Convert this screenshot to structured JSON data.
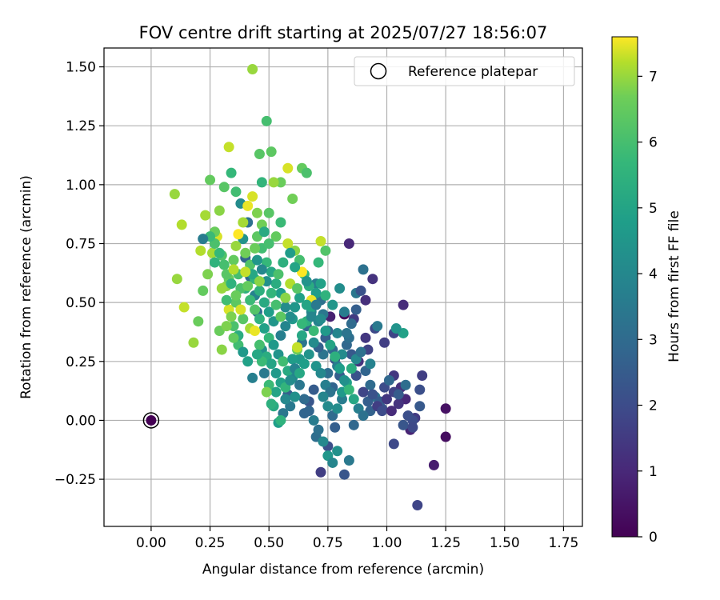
{
  "chart_data": {
    "type": "scatter",
    "title": "FOV centre drift starting at 2025/07/27 18:56:07",
    "xlabel": "Angular distance from reference (arcmin)",
    "ylabel": "Rotation from reference (arcmin)",
    "xlim": [
      -0.2,
      1.83
    ],
    "ylim": [
      -0.45,
      1.58
    ],
    "xticks": [
      "0.00",
      "0.25",
      "0.50",
      "0.75",
      "1.00",
      "1.25",
      "1.50",
      "1.75"
    ],
    "xtick_values": [
      0,
      0.25,
      0.5,
      0.75,
      1.0,
      1.25,
      1.5,
      1.75
    ],
    "yticks": [
      "−0.25",
      "0.00",
      "0.25",
      "0.50",
      "0.75",
      "1.00",
      "1.25",
      "1.50"
    ],
    "ytick_values": [
      -0.25,
      0,
      0.25,
      0.5,
      0.75,
      1.0,
      1.25,
      1.5
    ],
    "grid": true,
    "legend": {
      "position": "top-right",
      "label": "Reference platepar"
    },
    "reference_point": {
      "x": 0.0,
      "y": 0.0,
      "hours": 0
    },
    "colorbar": {
      "label": "Hours from first FF file",
      "range": [
        0,
        7.6
      ],
      "ticks": [
        "0",
        "1",
        "2",
        "3",
        "4",
        "5",
        "6",
        "7"
      ],
      "tick_values": [
        0,
        1,
        2,
        3,
        4,
        5,
        6,
        7
      ],
      "colormap": "viridis"
    },
    "points": [
      [
        0.82,
        0.45,
        0.2
      ],
      [
        0.76,
        0.44,
        0.8
      ],
      [
        0.84,
        0.75,
        1.0
      ],
      [
        0.91,
        0.51,
        1.2
      ],
      [
        0.94,
        0.6,
        1.3
      ],
      [
        1.07,
        0.49,
        1.1
      ],
      [
        0.86,
        0.43,
        1.5
      ],
      [
        0.88,
        0.25,
        1.3
      ],
      [
        0.92,
        0.3,
        1.7
      ],
      [
        0.95,
        0.39,
        1.9
      ],
      [
        0.99,
        0.33,
        1.6
      ],
      [
        1.03,
        0.37,
        1.8
      ],
      [
        1.03,
        0.19,
        1.4
      ],
      [
        1.06,
        0.14,
        1.2
      ],
      [
        1.08,
        0.09,
        1.0
      ],
      [
        1.1,
        -0.04,
        0.9
      ],
      [
        1.12,
        0.01,
        1.5
      ],
      [
        1.14,
        0.13,
        2.1
      ],
      [
        1.15,
        0.19,
        1.6
      ],
      [
        1.14,
        0.06,
        2.4
      ],
      [
        1.2,
        -0.19,
        0.7
      ],
      [
        1.25,
        0.05,
        0.4
      ],
      [
        1.25,
        -0.07,
        0.3
      ],
      [
        1.13,
        -0.36,
        1.8
      ],
      [
        1.03,
        -0.1,
        1.9
      ],
      [
        1.07,
        -0.02,
        2.3
      ],
      [
        1.11,
        0.0,
        2.0
      ],
      [
        0.98,
        0.05,
        2.2
      ],
      [
        0.95,
        0.1,
        2.5
      ],
      [
        0.93,
        0.04,
        2.7
      ],
      [
        0.9,
        0.12,
        1.8
      ],
      [
        0.87,
        0.19,
        2.2
      ],
      [
        0.85,
        0.28,
        2.4
      ],
      [
        0.83,
        0.32,
        2.9
      ],
      [
        0.8,
        0.19,
        2.6
      ],
      [
        0.78,
        0.26,
        2.2
      ],
      [
        0.77,
        0.14,
        2.8
      ],
      [
        0.75,
        0.2,
        3.1
      ],
      [
        0.73,
        0.28,
        3.3
      ],
      [
        0.71,
        0.31,
        2.7
      ],
      [
        0.69,
        0.13,
        2.5
      ],
      [
        0.67,
        0.08,
        2.3
      ],
      [
        0.65,
        0.03,
        2.8
      ],
      [
        0.7,
        -0.07,
        3.1
      ],
      [
        0.72,
        -0.22,
        1.6
      ],
      [
        0.75,
        -0.11,
        2.1
      ],
      [
        0.78,
        -0.03,
        2.6
      ],
      [
        0.82,
        -0.23,
        2.3
      ],
      [
        0.84,
        -0.17,
        3.5
      ],
      [
        0.86,
        -0.02,
        2.9
      ],
      [
        0.79,
        -0.13,
        4.3
      ],
      [
        0.81,
        0.09,
        3.6
      ],
      [
        0.79,
        0.37,
        3.9
      ],
      [
        0.82,
        0.46,
        3.6
      ],
      [
        0.87,
        0.54,
        3.4
      ],
      [
        0.9,
        0.64,
        3.2
      ],
      [
        0.84,
        0.35,
        3.1
      ],
      [
        0.8,
        0.56,
        4.2
      ],
      [
        0.77,
        0.49,
        4.5
      ],
      [
        0.74,
        0.35,
        2.6
      ],
      [
        0.72,
        0.51,
        3.2
      ],
      [
        0.7,
        0.58,
        3.7
      ],
      [
        0.68,
        0.46,
        4.0
      ],
      [
        0.66,
        0.4,
        2.9
      ],
      [
        0.64,
        0.33,
        3.3
      ],
      [
        0.63,
        0.26,
        4.6
      ],
      [
        0.6,
        0.18,
        3.9
      ],
      [
        0.58,
        0.11,
        2.6
      ],
      [
        0.56,
        0.03,
        3.4
      ],
      [
        0.54,
        -0.01,
        4.8
      ],
      [
        0.52,
        0.06,
        5.2
      ],
      [
        0.5,
        0.15,
        5.8
      ],
      [
        0.48,
        0.2,
        3.5
      ],
      [
        0.47,
        0.3,
        4.3
      ],
      [
        0.45,
        0.46,
        3.1
      ],
      [
        0.44,
        0.53,
        3.8
      ],
      [
        0.42,
        0.61,
        3.0
      ],
      [
        0.4,
        0.69,
        2.8
      ],
      [
        0.39,
        0.77,
        4.4
      ],
      [
        0.41,
        0.84,
        3.2
      ],
      [
        0.38,
        0.92,
        4.1
      ],
      [
        0.36,
        0.97,
        5.9
      ],
      [
        0.34,
        1.05,
        5.7
      ],
      [
        0.31,
        0.99,
        6.3
      ],
      [
        0.29,
        0.89,
        6.9
      ],
      [
        0.28,
        0.78,
        7.4
      ],
      [
        0.26,
        0.71,
        7.1
      ],
      [
        0.24,
        0.62,
        6.8
      ],
      [
        0.22,
        0.55,
        6.5
      ],
      [
        0.2,
        0.42,
        6.6
      ],
      [
        0.18,
        0.33,
        7.0
      ],
      [
        0.14,
        0.48,
        7.3
      ],
      [
        0.11,
        0.6,
        7.0
      ],
      [
        0.13,
        0.83,
        7.2
      ],
      [
        0.1,
        0.96,
        7.0
      ],
      [
        0.21,
        0.72,
        7.2
      ],
      [
        0.23,
        0.87,
        7.1
      ],
      [
        0.25,
        1.02,
        6.5
      ],
      [
        0.27,
        0.8,
        6.6
      ],
      [
        0.3,
        0.7,
        6.2
      ],
      [
        0.32,
        0.57,
        6.9
      ],
      [
        0.33,
        0.47,
        7.4
      ],
      [
        0.35,
        0.4,
        6.1
      ],
      [
        0.37,
        0.32,
        5.9
      ],
      [
        0.3,
        0.3,
        6.9
      ],
      [
        0.29,
        0.38,
        6.6
      ],
      [
        0.33,
        1.16,
        7.3
      ],
      [
        0.43,
        1.49,
        7.0
      ],
      [
        0.49,
        1.27,
        6.0
      ],
      [
        0.46,
        1.13,
        6.3
      ],
      [
        0.51,
        1.14,
        6.4
      ],
      [
        0.58,
        1.07,
        7.4
      ],
      [
        0.64,
        1.07,
        6.5
      ],
      [
        0.66,
        1.05,
        6.1
      ],
      [
        0.6,
        0.94,
        6.7
      ],
      [
        0.55,
        1.01,
        6.6
      ],
      [
        0.52,
        1.01,
        7.0
      ],
      [
        0.47,
        1.01,
        5.6
      ],
      [
        0.45,
        0.88,
        6.8
      ],
      [
        0.43,
        0.95,
        7.4
      ],
      [
        0.41,
        0.91,
        7.5
      ],
      [
        0.39,
        0.84,
        7.1
      ],
      [
        0.37,
        0.79,
        7.6
      ],
      [
        0.36,
        0.74,
        7.0
      ],
      [
        0.35,
        0.68,
        6.5
      ],
      [
        0.37,
        0.62,
        6.0
      ],
      [
        0.4,
        0.56,
        5.4
      ],
      [
        0.42,
        0.51,
        5.8
      ],
      [
        0.44,
        0.47,
        6.2
      ],
      [
        0.46,
        0.43,
        5.5
      ],
      [
        0.48,
        0.39,
        4.9
      ],
      [
        0.5,
        0.35,
        5.7
      ],
      [
        0.52,
        0.32,
        4.6
      ],
      [
        0.54,
        0.28,
        4.4
      ],
      [
        0.56,
        0.25,
        5.9
      ],
      [
        0.58,
        0.21,
        5.2
      ],
      [
        0.6,
        0.26,
        4.7
      ],
      [
        0.62,
        0.3,
        6.6
      ],
      [
        0.64,
        0.36,
        5.1
      ],
      [
        0.66,
        0.42,
        5.4
      ],
      [
        0.68,
        0.48,
        5.0
      ],
      [
        0.7,
        0.54,
        4.7
      ],
      [
        0.72,
        0.58,
        4.9
      ],
      [
        0.74,
        0.53,
        5.5
      ],
      [
        0.71,
        0.67,
        5.7
      ],
      [
        0.72,
        0.76,
        7.3
      ],
      [
        0.74,
        0.72,
        6.2
      ],
      [
        0.68,
        0.51,
        7.5
      ],
      [
        0.69,
        0.38,
        5.8
      ],
      [
        0.7,
        0.23,
        4.4
      ],
      [
        0.72,
        0.2,
        4.0
      ],
      [
        0.74,
        0.15,
        3.7
      ],
      [
        0.76,
        0.12,
        3.3
      ],
      [
        0.75,
        0.06,
        4.1
      ],
      [
        0.77,
        0.02,
        3.0
      ],
      [
        0.73,
        0.1,
        3.9
      ],
      [
        0.6,
        0.43,
        4.6
      ],
      [
        0.57,
        0.48,
        4.1
      ],
      [
        0.55,
        0.54,
        4.8
      ],
      [
        0.53,
        0.58,
        5.3
      ],
      [
        0.51,
        0.63,
        5.1
      ],
      [
        0.49,
        0.67,
        5.7
      ],
      [
        0.47,
        0.73,
        5.9
      ],
      [
        0.45,
        0.78,
        6.4
      ],
      [
        0.47,
        0.83,
        6.7
      ],
      [
        0.5,
        0.88,
        6.3
      ],
      [
        0.55,
        0.84,
        5.8
      ],
      [
        0.53,
        0.78,
        6.5
      ],
      [
        0.58,
        0.75,
        7.3
      ],
      [
        0.61,
        0.72,
        6.9
      ],
      [
        0.63,
        0.68,
        6.0
      ],
      [
        0.65,
        0.62,
        5.6
      ],
      [
        0.67,
        0.57,
        5.3
      ],
      [
        0.63,
        0.52,
        4.9
      ],
      [
        0.61,
        0.48,
        4.5
      ],
      [
        0.59,
        0.44,
        4.2
      ],
      [
        0.57,
        0.4,
        3.9
      ],
      [
        0.55,
        0.36,
        3.7
      ],
      [
        0.52,
        0.42,
        4.5
      ],
      [
        0.5,
        0.46,
        4.8
      ],
      [
        0.48,
        0.5,
        5.2
      ],
      [
        0.46,
        0.55,
        5.4
      ],
      [
        0.44,
        0.6,
        5.6
      ],
      [
        0.42,
        0.66,
        6.2
      ],
      [
        0.4,
        0.71,
        6.7
      ],
      [
        0.38,
        0.56,
        6.1
      ],
      [
        0.36,
        0.5,
        6.4
      ],
      [
        0.34,
        0.44,
        6.8
      ],
      [
        0.32,
        0.51,
        5.9
      ],
      [
        0.39,
        0.43,
        6.3
      ],
      [
        0.42,
        0.39,
        7.1
      ],
      [
        0.44,
        0.38,
        7.5
      ],
      [
        0.46,
        0.32,
        6.0
      ],
      [
        0.49,
        0.27,
        5.3
      ],
      [
        0.51,
        0.24,
        5.0
      ],
      [
        0.53,
        0.2,
        4.6
      ],
      [
        0.55,
        0.16,
        4.9
      ],
      [
        0.57,
        0.14,
        5.6
      ],
      [
        0.59,
        0.17,
        4.2
      ],
      [
        0.61,
        0.22,
        3.8
      ],
      [
        0.63,
        0.15,
        3.4
      ],
      [
        0.65,
        0.09,
        3.0
      ],
      [
        0.67,
        0.04,
        2.8
      ],
      [
        0.69,
        0.0,
        3.6
      ],
      [
        0.71,
        -0.04,
        3.2
      ],
      [
        0.73,
        -0.09,
        4.0
      ],
      [
        0.75,
        -0.15,
        4.5
      ],
      [
        0.77,
        -0.18,
        3.9
      ],
      [
        0.79,
        0.05,
        4.2
      ],
      [
        0.81,
        0.12,
        4.6
      ],
      [
        0.83,
        0.16,
        4.9
      ],
      [
        0.85,
        0.22,
        5.3
      ],
      [
        0.87,
        0.26,
        4.0
      ],
      [
        0.89,
        0.29,
        3.2
      ],
      [
        0.91,
        0.21,
        2.8
      ],
      [
        0.93,
        0.15,
        3.0
      ],
      [
        0.95,
        0.1,
        3.3
      ],
      [
        0.97,
        0.08,
        2.5
      ],
      [
        0.99,
        0.14,
        2.0
      ],
      [
        1.01,
        0.17,
        2.9
      ],
      [
        1.03,
        0.12,
        1.7
      ],
      [
        1.05,
        0.07,
        1.3
      ],
      [
        1.09,
        0.02,
        2.1
      ],
      [
        1.11,
        -0.03,
        1.9
      ],
      [
        1.07,
        0.37,
        4.9
      ],
      [
        1.04,
        0.39,
        4.4
      ],
      [
        0.96,
        0.4,
        3.5
      ],
      [
        0.93,
        0.24,
        3.8
      ],
      [
        0.91,
        0.35,
        1.4
      ],
      [
        0.89,
        0.55,
        2.2
      ],
      [
        0.87,
        0.47,
        2.6
      ],
      [
        0.85,
        0.41,
        3.0
      ],
      [
        0.83,
        0.37,
        3.3
      ],
      [
        0.81,
        0.28,
        4.1
      ],
      [
        0.79,
        0.23,
        3.6
      ],
      [
        0.77,
        0.3,
        3.0
      ],
      [
        0.75,
        0.38,
        2.8
      ],
      [
        0.73,
        0.45,
        3.4
      ],
      [
        0.71,
        0.42,
        3.8
      ],
      [
        0.69,
        0.33,
        4.1
      ],
      [
        0.67,
        0.28,
        4.4
      ],
      [
        0.65,
        0.24,
        4.8
      ],
      [
        0.63,
        0.2,
        5.1
      ],
      [
        0.61,
        0.1,
        4.3
      ],
      [
        0.59,
        0.06,
        3.5
      ],
      [
        0.57,
        0.09,
        4.0
      ],
      [
        0.55,
        0.0,
        5.5
      ],
      [
        0.53,
        0.12,
        5.0
      ],
      [
        0.51,
        0.07,
        5.4
      ],
      [
        0.49,
        0.12,
        6.8
      ],
      [
        0.47,
        0.25,
        5.8
      ],
      [
        0.45,
        0.28,
        5.1
      ],
      [
        0.43,
        0.18,
        3.7
      ],
      [
        0.41,
        0.25,
        4.9
      ],
      [
        0.39,
        0.29,
        4.6
      ],
      [
        0.37,
        0.36,
        5.3
      ],
      [
        0.35,
        0.35,
        6.5
      ],
      [
        0.33,
        0.6,
        6.6
      ],
      [
        0.31,
        0.66,
        6.0
      ],
      [
        0.29,
        0.71,
        5.7
      ],
      [
        0.27,
        0.75,
        6.1
      ],
      [
        0.25,
        0.78,
        5.8
      ],
      [
        0.27,
        0.67,
        5.5
      ],
      [
        0.22,
        0.77,
        3.6
      ],
      [
        0.41,
        0.57,
        6.5
      ],
      [
        0.43,
        0.62,
        5.1
      ],
      [
        0.45,
        0.68,
        4.5
      ],
      [
        0.47,
        0.64,
        4.0
      ],
      [
        0.49,
        0.59,
        4.3
      ],
      [
        0.51,
        0.54,
        5.6
      ],
      [
        0.53,
        0.49,
        6.0
      ],
      [
        0.55,
        0.44,
        6.4
      ],
      [
        0.57,
        0.52,
        6.9
      ],
      [
        0.59,
        0.58,
        7.2
      ],
      [
        0.62,
        0.56,
        6.3
      ],
      [
        0.64,
        0.63,
        7.6
      ],
      [
        0.66,
        0.59,
        4.4
      ],
      [
        0.61,
        0.65,
        5.0
      ],
      [
        0.59,
        0.71,
        4.7
      ],
      [
        0.56,
        0.67,
        5.4
      ],
      [
        0.54,
        0.62,
        6.1
      ],
      [
        0.5,
        0.75,
        6.0
      ],
      [
        0.48,
        0.8,
        5.2
      ],
      [
        0.44,
        0.73,
        6.6
      ],
      [
        0.46,
        0.59,
        6.9
      ],
      [
        0.4,
        0.63,
        7.3
      ],
      [
        0.38,
        0.47,
        7.4
      ],
      [
        0.36,
        0.53,
        6.6
      ],
      [
        0.34,
        0.58,
        5.5
      ],
      [
        0.32,
        0.62,
        6.3
      ],
      [
        0.3,
        0.56,
        7.0
      ],
      [
        0.32,
        0.4,
        6.8
      ],
      [
        0.35,
        0.64,
        7.2
      ],
      [
        0.62,
        0.31,
        7.3
      ],
      [
        0.64,
        0.41,
        5.7
      ],
      [
        0.66,
        0.49,
        5.0
      ],
      [
        0.68,
        0.44,
        3.9
      ],
      [
        0.7,
        0.49,
        3.5
      ],
      [
        0.72,
        0.43,
        4.1
      ],
      [
        0.74,
        0.38,
        4.6
      ],
      [
        0.76,
        0.32,
        5.0
      ],
      [
        0.78,
        0.27,
        5.4
      ],
      [
        0.8,
        0.22,
        4.8
      ],
      [
        0.82,
        0.17,
        4.3
      ],
      [
        0.84,
        0.13,
        5.7
      ],
      [
        0.86,
        0.09,
        5.1
      ],
      [
        0.88,
        0.05,
        3.7
      ],
      [
        0.9,
        0.02,
        3.2
      ],
      [
        0.92,
        0.08,
        2.6
      ],
      [
        0.94,
        0.11,
        2.2
      ],
      [
        0.96,
        0.06,
        1.6
      ],
      [
        0.98,
        0.04,
        2.0
      ],
      [
        1.0,
        0.09,
        1.4
      ],
      [
        1.02,
        0.04,
        1.1
      ],
      [
        1.08,
        0.15,
        3.1
      ],
      [
        1.05,
        0.11,
        2.5
      ]
    ]
  }
}
